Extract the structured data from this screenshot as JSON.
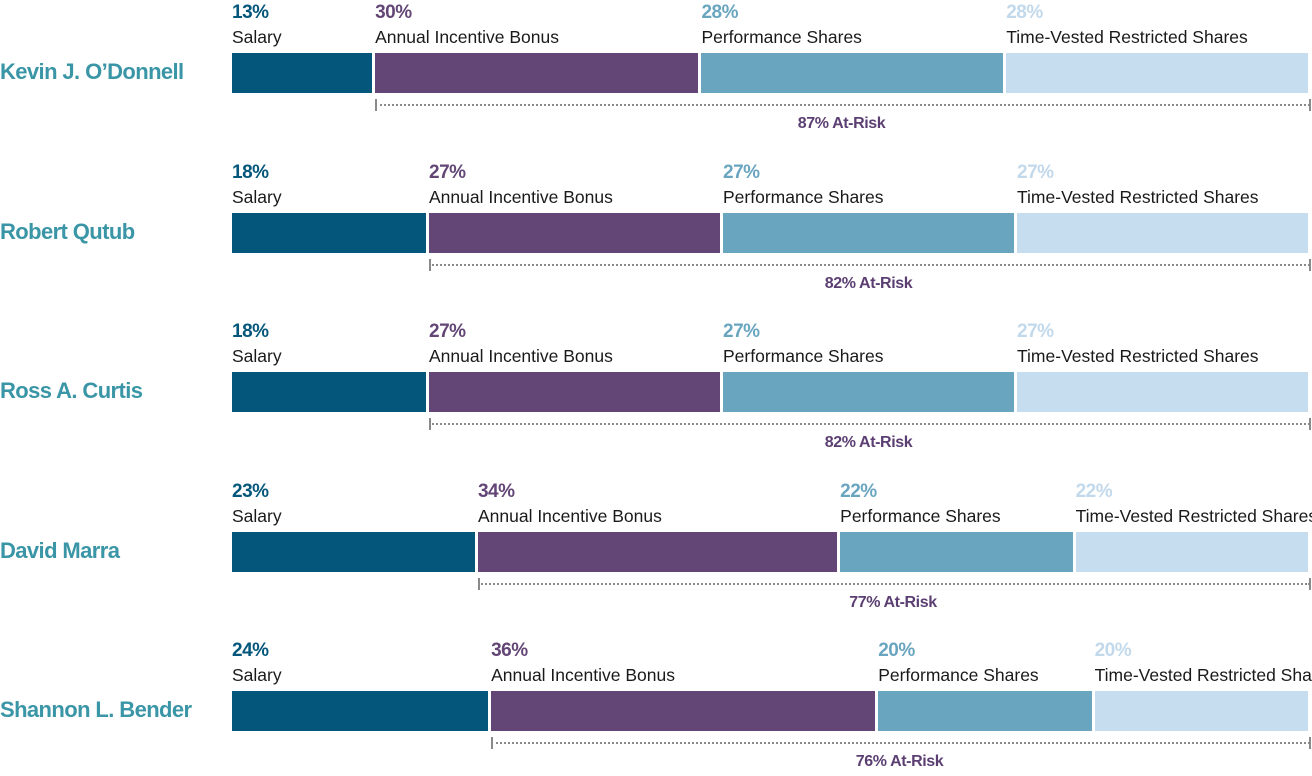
{
  "colors": {
    "name": "#3a96a6",
    "salary": "#04577a",
    "bonus": "#634676",
    "performance": "#6aa5c0",
    "restricted": "#c6ddf0",
    "restricted_pct": "#c2d9ec",
    "at_risk": "#5c3f72"
  },
  "chart_data": {
    "type": "bar",
    "orientation": "horizontal-stacked",
    "stacking": "percent",
    "categories": [
      "Salary",
      "Annual Incentive Bonus",
      "Performance Shares",
      "Time-Vested Restricted Shares"
    ],
    "executives": [
      {
        "name": "Kevin J. O’Donnell",
        "values": [
          13,
          30,
          28,
          28
        ],
        "pct_labels": [
          "13%",
          "30%",
          "28%",
          "28%"
        ],
        "at_risk": "87% At-Risk"
      },
      {
        "name": "Robert Qutub",
        "values": [
          18,
          27,
          27,
          27
        ],
        "pct_labels": [
          "18%",
          "27%",
          "27%",
          "27%"
        ],
        "at_risk": "82% At-Risk"
      },
      {
        "name": "Ross A. Curtis",
        "values": [
          18,
          27,
          27,
          27
        ],
        "pct_labels": [
          "18%",
          "27%",
          "27%",
          "27%"
        ],
        "at_risk": "82% At-Risk"
      },
      {
        "name": "David Marra",
        "values": [
          23,
          34,
          22,
          22
        ],
        "pct_labels": [
          "23%",
          "34%",
          "22%",
          "22%"
        ],
        "at_risk": "77% At-Risk"
      },
      {
        "name": "Shannon L. Bender",
        "values": [
          24,
          36,
          20,
          20
        ],
        "pct_labels": [
          "24%",
          "36%",
          "20%",
          "20%"
        ],
        "at_risk": "76% At-Risk"
      }
    ]
  }
}
